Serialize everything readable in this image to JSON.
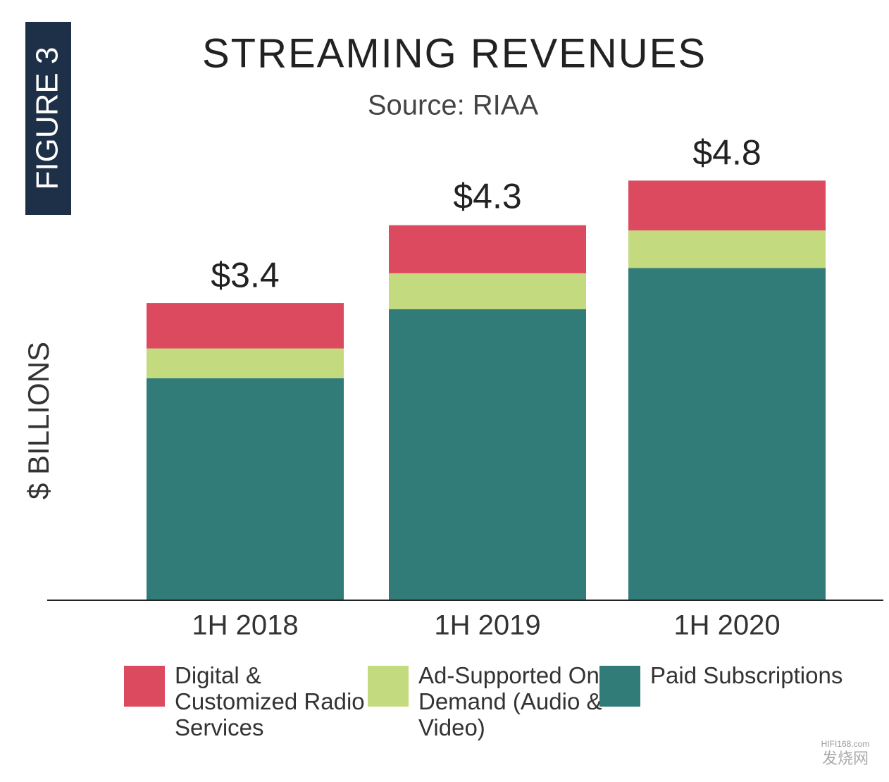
{
  "chart_data": {
    "type": "stacked-bar",
    "badge": "FIGURE 3",
    "title": "STREAMING REVENUES",
    "subtitle": "Source: RIAA",
    "ylabel": "$ BILLIONS",
    "categories": [
      "1H 2018",
      "1H 2019",
      "1H 2020"
    ],
    "series": [
      {
        "name": "Digital & Customized Radio Services",
        "color": "#dc4a60",
        "values": [
          0.52,
          0.55,
          0.57
        ]
      },
      {
        "name": "Ad-Supported On-Demand (Audio & Video)",
        "color": "#c4da7e",
        "values": [
          0.34,
          0.41,
          0.43
        ]
      },
      {
        "name": "Paid Subscriptions",
        "color": "#317b78",
        "values": [
          2.54,
          3.33,
          3.8
        ]
      }
    ],
    "totals": {
      "values": [
        3.4,
        4.3,
        4.8
      ],
      "value_labels": [
        "$3.4",
        "$4.3",
        "$4.8"
      ]
    },
    "ylim": [
      0,
      5.5
    ],
    "watermark": [
      "HIFI168.com",
      "发烧网"
    ]
  }
}
